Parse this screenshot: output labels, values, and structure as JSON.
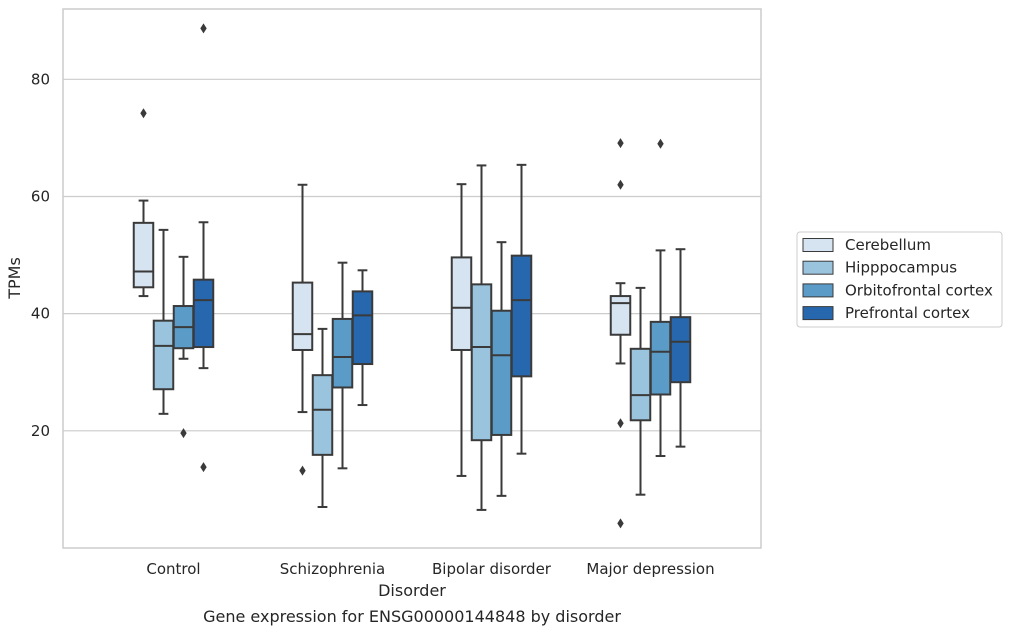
{
  "caption": "Gene expression for ENSG00000144848 by disorder",
  "chart_data": {
    "type": "box",
    "xlabel": "Disorder",
    "ylabel": "TPMs",
    "ylim": [
      0,
      92
    ],
    "yticks": [
      20,
      40,
      60,
      80
    ],
    "grid": "horizontal",
    "legend_position": "right",
    "categories": [
      "Control",
      "Schizophrenia",
      "Bipolar disorder",
      "Major depression"
    ],
    "series": [
      {
        "name": "Cerebellum",
        "color": "#d6e4f2",
        "boxes": [
          {
            "whislo": 43.0,
            "q1": 44.5,
            "med": 47.2,
            "q3": 55.5,
            "whishi": 59.3,
            "fliers": [
              74.2
            ]
          },
          {
            "whislo": 23.2,
            "q1": 33.8,
            "med": 36.5,
            "q3": 45.3,
            "whishi": 62.0,
            "fliers": [
              13.2
            ]
          },
          {
            "whislo": 12.3,
            "q1": 33.8,
            "med": 41.0,
            "q3": 49.6,
            "whishi": 62.1,
            "fliers": []
          },
          {
            "whislo": 31.5,
            "q1": 36.4,
            "med": 41.8,
            "q3": 43.0,
            "whishi": 45.2,
            "fliers": [
              69.1,
              62.0,
              21.3,
              4.2
            ]
          }
        ]
      },
      {
        "name": "Hipppocampus",
        "color": "#9ac3dd",
        "boxes": [
          {
            "whislo": 22.9,
            "q1": 27.1,
            "med": 34.5,
            "q3": 38.8,
            "whishi": 54.3,
            "fliers": []
          },
          {
            "whislo": 7.0,
            "q1": 15.9,
            "med": 23.6,
            "q3": 29.5,
            "whishi": 37.4,
            "fliers": []
          },
          {
            "whislo": 6.5,
            "q1": 18.4,
            "med": 34.3,
            "q3": 45.0,
            "whishi": 65.3,
            "fliers": []
          },
          {
            "whislo": 9.1,
            "q1": 21.8,
            "med": 26.1,
            "q3": 34.0,
            "whishi": 44.4,
            "fliers": []
          }
        ]
      },
      {
        "name": "Orbitofrontal cortex",
        "color": "#5a9bc8",
        "boxes": [
          {
            "whislo": 32.3,
            "q1": 34.1,
            "med": 37.7,
            "q3": 41.3,
            "whishi": 49.7,
            "fliers": [
              19.6
            ]
          },
          {
            "whislo": 13.6,
            "q1": 27.4,
            "med": 32.6,
            "q3": 39.1,
            "whishi": 48.7,
            "fliers": []
          },
          {
            "whislo": 8.9,
            "q1": 19.3,
            "med": 32.9,
            "q3": 40.5,
            "whishi": 52.2,
            "fliers": []
          },
          {
            "whislo": 15.7,
            "q1": 26.2,
            "med": 33.5,
            "q3": 38.6,
            "whishi": 50.8,
            "fliers": [
              69.0
            ]
          }
        ]
      },
      {
        "name": "Prefrontal cortex",
        "color": "#2667ad",
        "boxes": [
          {
            "whislo": 30.7,
            "q1": 34.3,
            "med": 42.3,
            "q3": 45.8,
            "whishi": 55.6,
            "fliers": [
              88.7,
              13.8
            ]
          },
          {
            "whislo": 24.4,
            "q1": 31.4,
            "med": 39.7,
            "q3": 43.8,
            "whishi": 47.4,
            "fliers": []
          },
          {
            "whislo": 16.1,
            "q1": 29.3,
            "med": 42.3,
            "q3": 49.9,
            "whishi": 65.4,
            "fliers": []
          },
          {
            "whislo": 17.3,
            "q1": 28.3,
            "med": 35.2,
            "q3": 39.4,
            "whishi": 51.0,
            "fliers": []
          }
        ]
      }
    ]
  }
}
